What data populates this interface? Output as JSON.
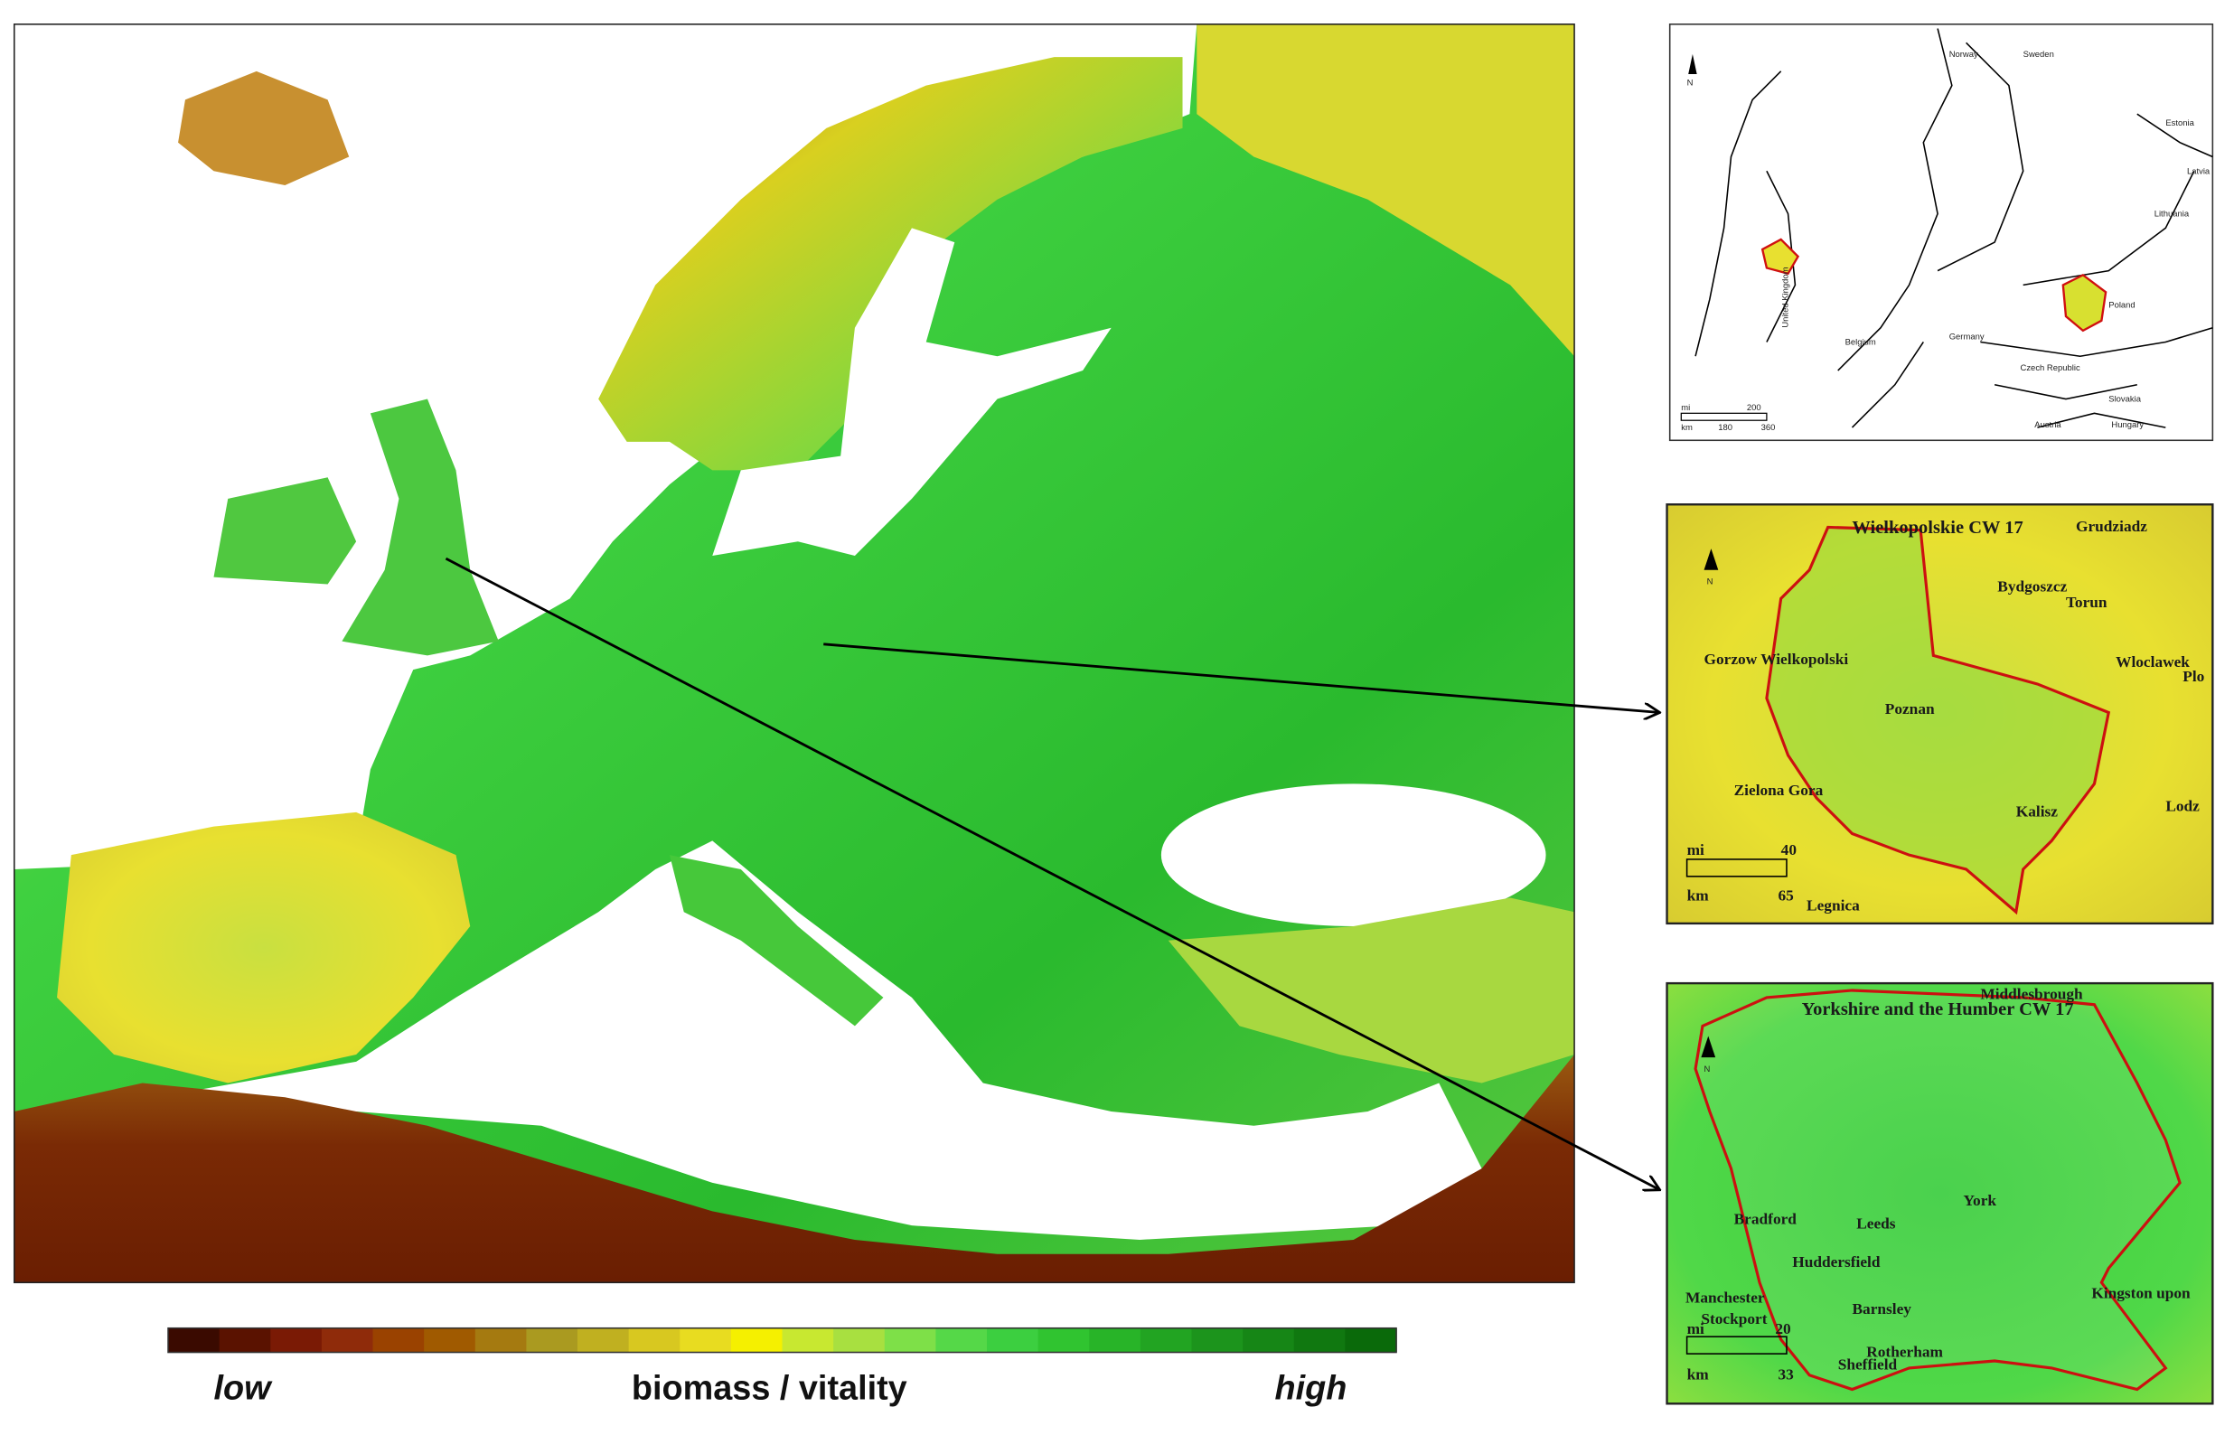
{
  "main_map": {
    "colorbar": {
      "colors": [
        "#3a0a00",
        "#5a1200",
        "#7a1a05",
        "#8f2b0a",
        "#9a4200",
        "#a05a00",
        "#a57a10",
        "#aa9a20",
        "#c0b020",
        "#d8c820",
        "#e8dc20",
        "#f5f000",
        "#c8e830",
        "#a8e040",
        "#7ee048",
        "#55d848",
        "#3ccf40",
        "#30c430",
        "#28b428",
        "#22a422",
        "#1c941c",
        "#168616",
        "#107810",
        "#0a6a0a"
      ],
      "low": "low",
      "title": "biomass / vitality",
      "high": "high"
    }
  },
  "overview_inset": {
    "north": "N",
    "labels": [
      "Norway",
      "Sweden",
      "Estonia",
      "Latvia",
      "Lithuania",
      "United Kingdom",
      "Belgium",
      "Germany",
      "Poland",
      "Czech Republic",
      "Slovakia",
      "Austria",
      "Hungary"
    ],
    "scale": {
      "mi": "mi",
      "mi_value": 200,
      "km": "km",
      "km_values": [
        180,
        360
      ]
    }
  },
  "wielkopolskie_inset": {
    "title": "Wielkopolskie CW 17",
    "north": "N",
    "cities": [
      "Grudziadz",
      "Bydgoszcz",
      "Torun",
      "Gorzow Wielkopolski",
      "Wloclawek",
      "Plo",
      "Poznan",
      "Zielona Gora",
      "Kalisz",
      "Lodz",
      "Legnica"
    ],
    "scale": {
      "mi": "mi",
      "mi_value": 40,
      "km": "km",
      "km_value": 65
    }
  },
  "yorkshire_inset": {
    "title": "Yorkshire and the Humber CW 17",
    "north": "N",
    "cities": [
      "Middlesbrough",
      "York",
      "Bradford",
      "Leeds",
      "Huddersfield",
      "Manchester",
      "Stockport",
      "Barnsley",
      "Rotherham",
      "Sheffield",
      "Kingston upon"
    ],
    "scale": {
      "mi": "mi",
      "mi_value": 20,
      "km": "km",
      "km_value": 33
    }
  }
}
